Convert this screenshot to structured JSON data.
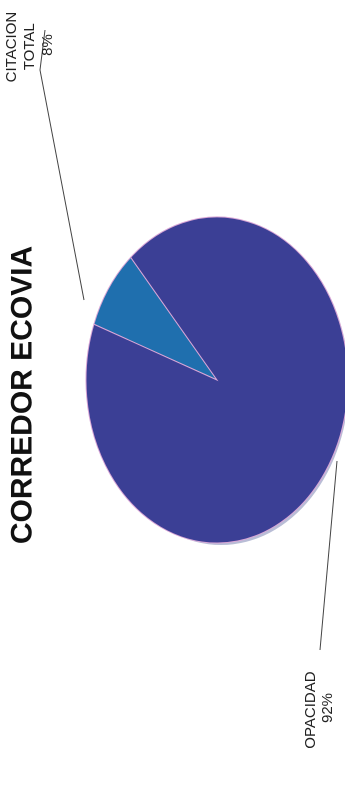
{
  "colors": {
    "background": "#ffffff",
    "text": "#222222",
    "leader_line": "#444444",
    "slice_edge": "#d9a6d6"
  },
  "chart_data": {
    "type": "pie",
    "title": "CORREDOR ECOVIA",
    "slices": [
      {
        "label_lines": [
          "OPACIDAD",
          "92%"
        ],
        "value": 92,
        "color": "#3b3f95"
      },
      {
        "label_lines": [
          "CITACION",
          "TOTAL",
          "8%"
        ],
        "value": 8,
        "color": "#1f6fae"
      }
    ]
  }
}
